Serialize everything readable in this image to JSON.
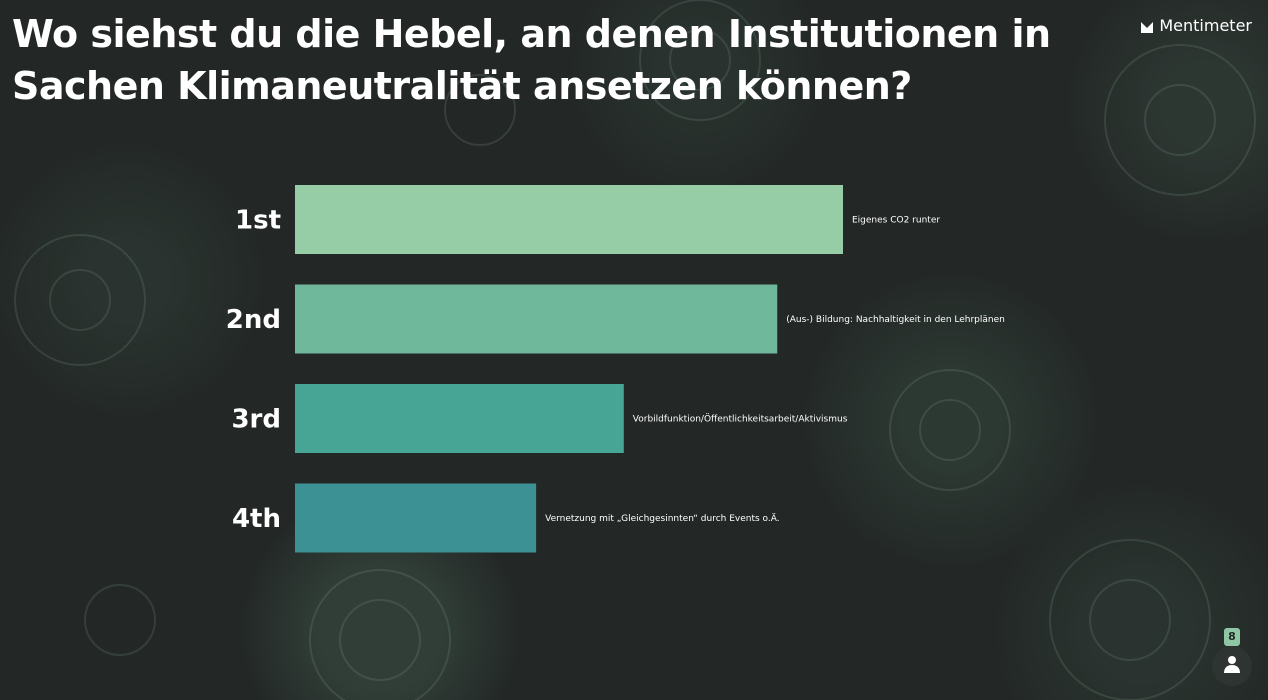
{
  "question": "Wo siehst du die Hebel, an denen Institutionen in Sachen Klimaneutralität ansetzen können?",
  "brand": {
    "name": "Mentimeter",
    "icon": "mentimeter-logo-icon"
  },
  "participants": {
    "count": "8",
    "icon": "person-icon"
  },
  "colors": {
    "background": "#232826",
    "text": "#ffffff"
  },
  "chart_data": {
    "type": "bar",
    "orientation": "horizontal",
    "categories": [
      "1st",
      "2nd",
      "3rd",
      "4th"
    ],
    "labels": [
      "Eigenes CO2 runter",
      "(Aus-) Bildung: Nachhaltigkeit in den Lehrplänen",
      "Vorbildfunktion/Öffentlichkeitsarbeit/Aktivismus",
      "Vernetzung mit „Gleichgesinnten“ durch Events o.Ä."
    ],
    "values": [
      1.0,
      0.88,
      0.6,
      0.44
    ],
    "colors": [
      "#96cca6",
      "#6fb89c",
      "#46a595",
      "#3b9193"
    ],
    "title": "",
    "xlabel": "",
    "ylabel": "",
    "grid": false,
    "legend": "none"
  }
}
